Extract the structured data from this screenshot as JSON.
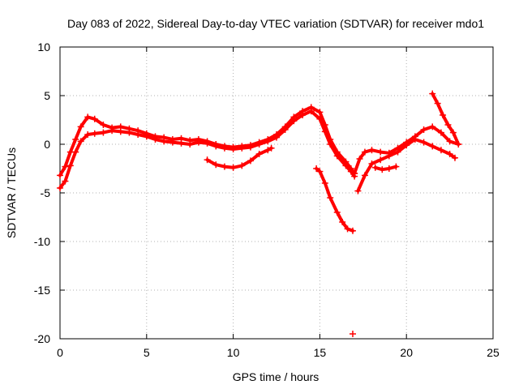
{
  "chart_data": {
    "type": "scatter",
    "title": "Day 083 of 2022, Sidereal Day-to-day VTEC variation (SDTVAR) for receiver mdo1",
    "xlabel": "GPS time / hours",
    "ylabel": "SDTVAR / TECUs",
    "xlim": [
      0,
      25
    ],
    "ylim": [
      -20,
      10
    ],
    "xticks": [
      0,
      5,
      10,
      15,
      20,
      25
    ],
    "yticks": [
      -20,
      -15,
      -10,
      -5,
      0,
      5,
      10
    ],
    "grid": true,
    "marker": "plus",
    "color": "#ff0000",
    "series": [
      {
        "name": "upper-a",
        "points": [
          [
            0,
            -3.2
          ],
          [
            0.3,
            -2.3
          ],
          [
            0.6,
            -0.8
          ],
          [
            0.9,
            0.5
          ],
          [
            1.2,
            1.8
          ],
          [
            1.6,
            2.8
          ],
          [
            2.0,
            2.6
          ],
          [
            2.5,
            2.0
          ],
          [
            3.0,
            1.7
          ],
          [
            3.5,
            1.8
          ],
          [
            4.0,
            1.6
          ],
          [
            4.5,
            1.4
          ],
          [
            5.0,
            1.1
          ],
          [
            5.5,
            0.8
          ],
          [
            6.0,
            0.7
          ],
          [
            6.5,
            0.5
          ],
          [
            7.0,
            0.6
          ],
          [
            7.5,
            0.4
          ],
          [
            8.0,
            0.5
          ],
          [
            8.5,
            0.3
          ],
          [
            9.0,
            0.0
          ],
          [
            9.5,
            -0.2
          ],
          [
            10.0,
            -0.3
          ],
          [
            10.5,
            -0.2
          ],
          [
            11.0,
            -0.1
          ],
          [
            11.5,
            0.2
          ],
          [
            12.0,
            0.5
          ],
          [
            12.5,
            1.0
          ],
          [
            13.0,
            1.8
          ],
          [
            13.5,
            2.8
          ],
          [
            14.0,
            3.4
          ],
          [
            14.5,
            3.8
          ],
          [
            15.0,
            3.3
          ],
          [
            15.3,
            2.0
          ],
          [
            15.6,
            0.5
          ],
          [
            16.0,
            -0.8
          ],
          [
            16.5,
            -1.8
          ],
          [
            16.8,
            -2.5
          ],
          [
            17.0,
            -3.0
          ]
        ]
      },
      {
        "name": "upper-b",
        "points": [
          [
            0,
            -4.5
          ],
          [
            0.3,
            -3.8
          ],
          [
            0.6,
            -2.2
          ],
          [
            0.9,
            -0.8
          ],
          [
            1.2,
            0.3
          ],
          [
            1.6,
            1.0
          ],
          [
            2.0,
            1.1
          ],
          [
            2.5,
            1.2
          ],
          [
            3.0,
            1.4
          ],
          [
            3.5,
            1.3
          ],
          [
            4.0,
            1.2
          ],
          [
            4.5,
            1.0
          ],
          [
            5.0,
            0.8
          ],
          [
            5.5,
            0.5
          ],
          [
            6.0,
            0.3
          ],
          [
            6.5,
            0.2
          ],
          [
            7.0,
            0.1
          ],
          [
            7.5,
            0.0
          ],
          [
            8.0,
            0.2
          ],
          [
            8.5,
            0.1
          ],
          [
            9.0,
            -0.2
          ],
          [
            9.5,
            -0.4
          ],
          [
            10.0,
            -0.5
          ],
          [
            10.5,
            -0.4
          ],
          [
            11.0,
            -0.3
          ],
          [
            11.5,
            0.0
          ],
          [
            12.0,
            0.3
          ],
          [
            12.5,
            0.7
          ],
          [
            13.0,
            1.5
          ],
          [
            13.5,
            2.4
          ],
          [
            14.0,
            3.0
          ],
          [
            14.5,
            3.4
          ],
          [
            15.0,
            2.6
          ],
          [
            15.3,
            1.3
          ],
          [
            15.6,
            0.0
          ],
          [
            16.0,
            -1.2
          ],
          [
            16.5,
            -2.2
          ],
          [
            16.8,
            -2.8
          ],
          [
            17.0,
            -3.3
          ]
        ]
      },
      {
        "name": "late-day",
        "points": [
          [
            17.0,
            -3.0
          ],
          [
            17.3,
            -1.5
          ],
          [
            17.6,
            -0.8
          ],
          [
            18.0,
            -0.6
          ],
          [
            18.5,
            -0.8
          ],
          [
            19.0,
            -0.9
          ],
          [
            19.5,
            -0.4
          ],
          [
            20.0,
            0.2
          ],
          [
            20.5,
            0.8
          ],
          [
            21.0,
            1.5
          ],
          [
            21.5,
            1.8
          ],
          [
            22.0,
            1.2
          ],
          [
            22.5,
            0.3
          ],
          [
            23.0,
            0.0
          ]
        ]
      },
      {
        "name": "late-spike",
        "points": [
          [
            21.5,
            5.2
          ],
          [
            21.8,
            4.2
          ],
          [
            22.1,
            3.0
          ],
          [
            22.4,
            2.0
          ],
          [
            22.7,
            1.2
          ],
          [
            23.0,
            0.0
          ]
        ]
      },
      {
        "name": "late-drop",
        "points": [
          [
            17.2,
            -4.8
          ],
          [
            17.6,
            -3.2
          ],
          [
            18.0,
            -2.0
          ],
          [
            18.5,
            -1.6
          ],
          [
            19.0,
            -1.2
          ],
          [
            19.5,
            -0.8
          ],
          [
            20.0,
            -0.1
          ],
          [
            20.5,
            0.5
          ],
          [
            21.0,
            0.2
          ],
          [
            21.5,
            -0.2
          ],
          [
            22.0,
            -0.6
          ],
          [
            22.5,
            -1.0
          ],
          [
            22.8,
            -1.4
          ]
        ]
      },
      {
        "name": "late-drop-2",
        "points": [
          [
            18.2,
            -2.4
          ],
          [
            18.6,
            -2.6
          ],
          [
            19.0,
            -2.5
          ],
          [
            19.4,
            -2.3
          ]
        ]
      },
      {
        "name": "night-dip",
        "points": [
          [
            8.5,
            -1.6
          ],
          [
            9.0,
            -2.1
          ],
          [
            9.5,
            -2.3
          ],
          [
            10.0,
            -2.4
          ],
          [
            10.5,
            -2.2
          ],
          [
            11.0,
            -1.7
          ],
          [
            11.5,
            -1.0
          ],
          [
            12.0,
            -0.6
          ],
          [
            12.2,
            -0.4
          ]
        ]
      },
      {
        "name": "afternoon-fall",
        "points": [
          [
            14.8,
            -2.5
          ],
          [
            15.0,
            -2.8
          ],
          [
            15.3,
            -4.0
          ],
          [
            15.6,
            -5.5
          ],
          [
            16.0,
            -7.0
          ],
          [
            16.3,
            -8.0
          ],
          [
            16.6,
            -8.7
          ],
          [
            16.9,
            -8.9
          ]
        ]
      },
      {
        "name": "outlier",
        "points": [
          [
            16.9,
            -19.5
          ]
        ]
      }
    ]
  }
}
